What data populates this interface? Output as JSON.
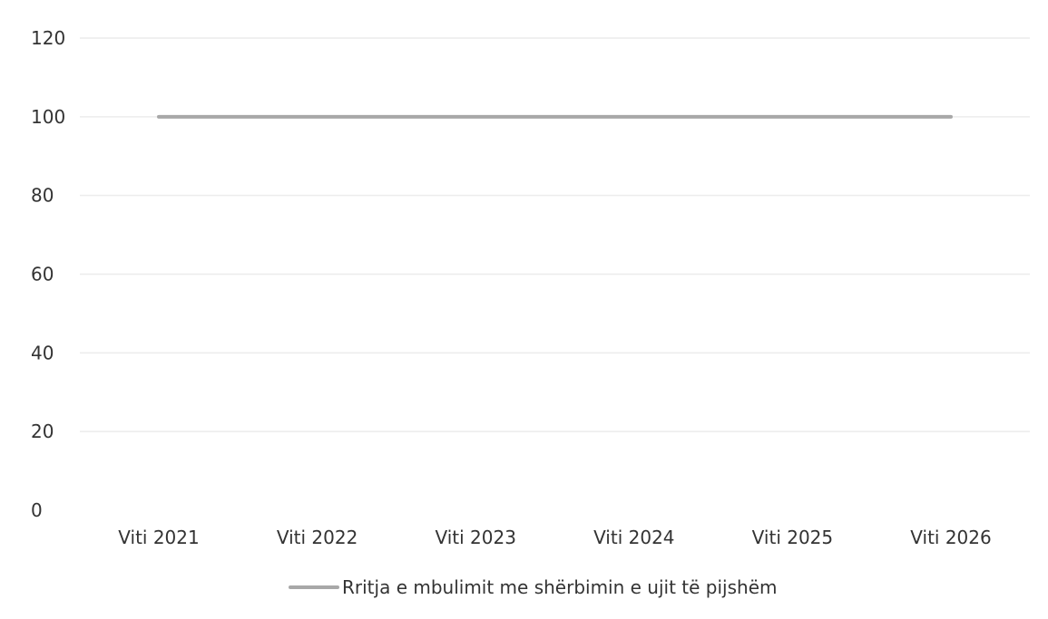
{
  "chart_data": {
    "type": "line",
    "title": "",
    "xlabel": "",
    "ylabel": "",
    "categories": [
      "Viti 2021",
      "Viti 2022",
      "Viti 2023",
      "Viti 2024",
      "Viti 2025",
      "Viti 2026"
    ],
    "y_ticks": [
      "0",
      "20",
      "40",
      "60",
      "80",
      "100",
      "120"
    ],
    "ylim": [
      0,
      120
    ],
    "grid": true,
    "legend_position": "bottom",
    "series": [
      {
        "name": "Rritja e mbulimit me shërbimin e ujit të pijshëm",
        "values": [
          100,
          100,
          100,
          100,
          100,
          100
        ],
        "color": "#a8a8a8"
      }
    ]
  },
  "colors": {
    "gridline": "#ececec",
    "text": "#333333",
    "series": "#a8a8a8"
  }
}
